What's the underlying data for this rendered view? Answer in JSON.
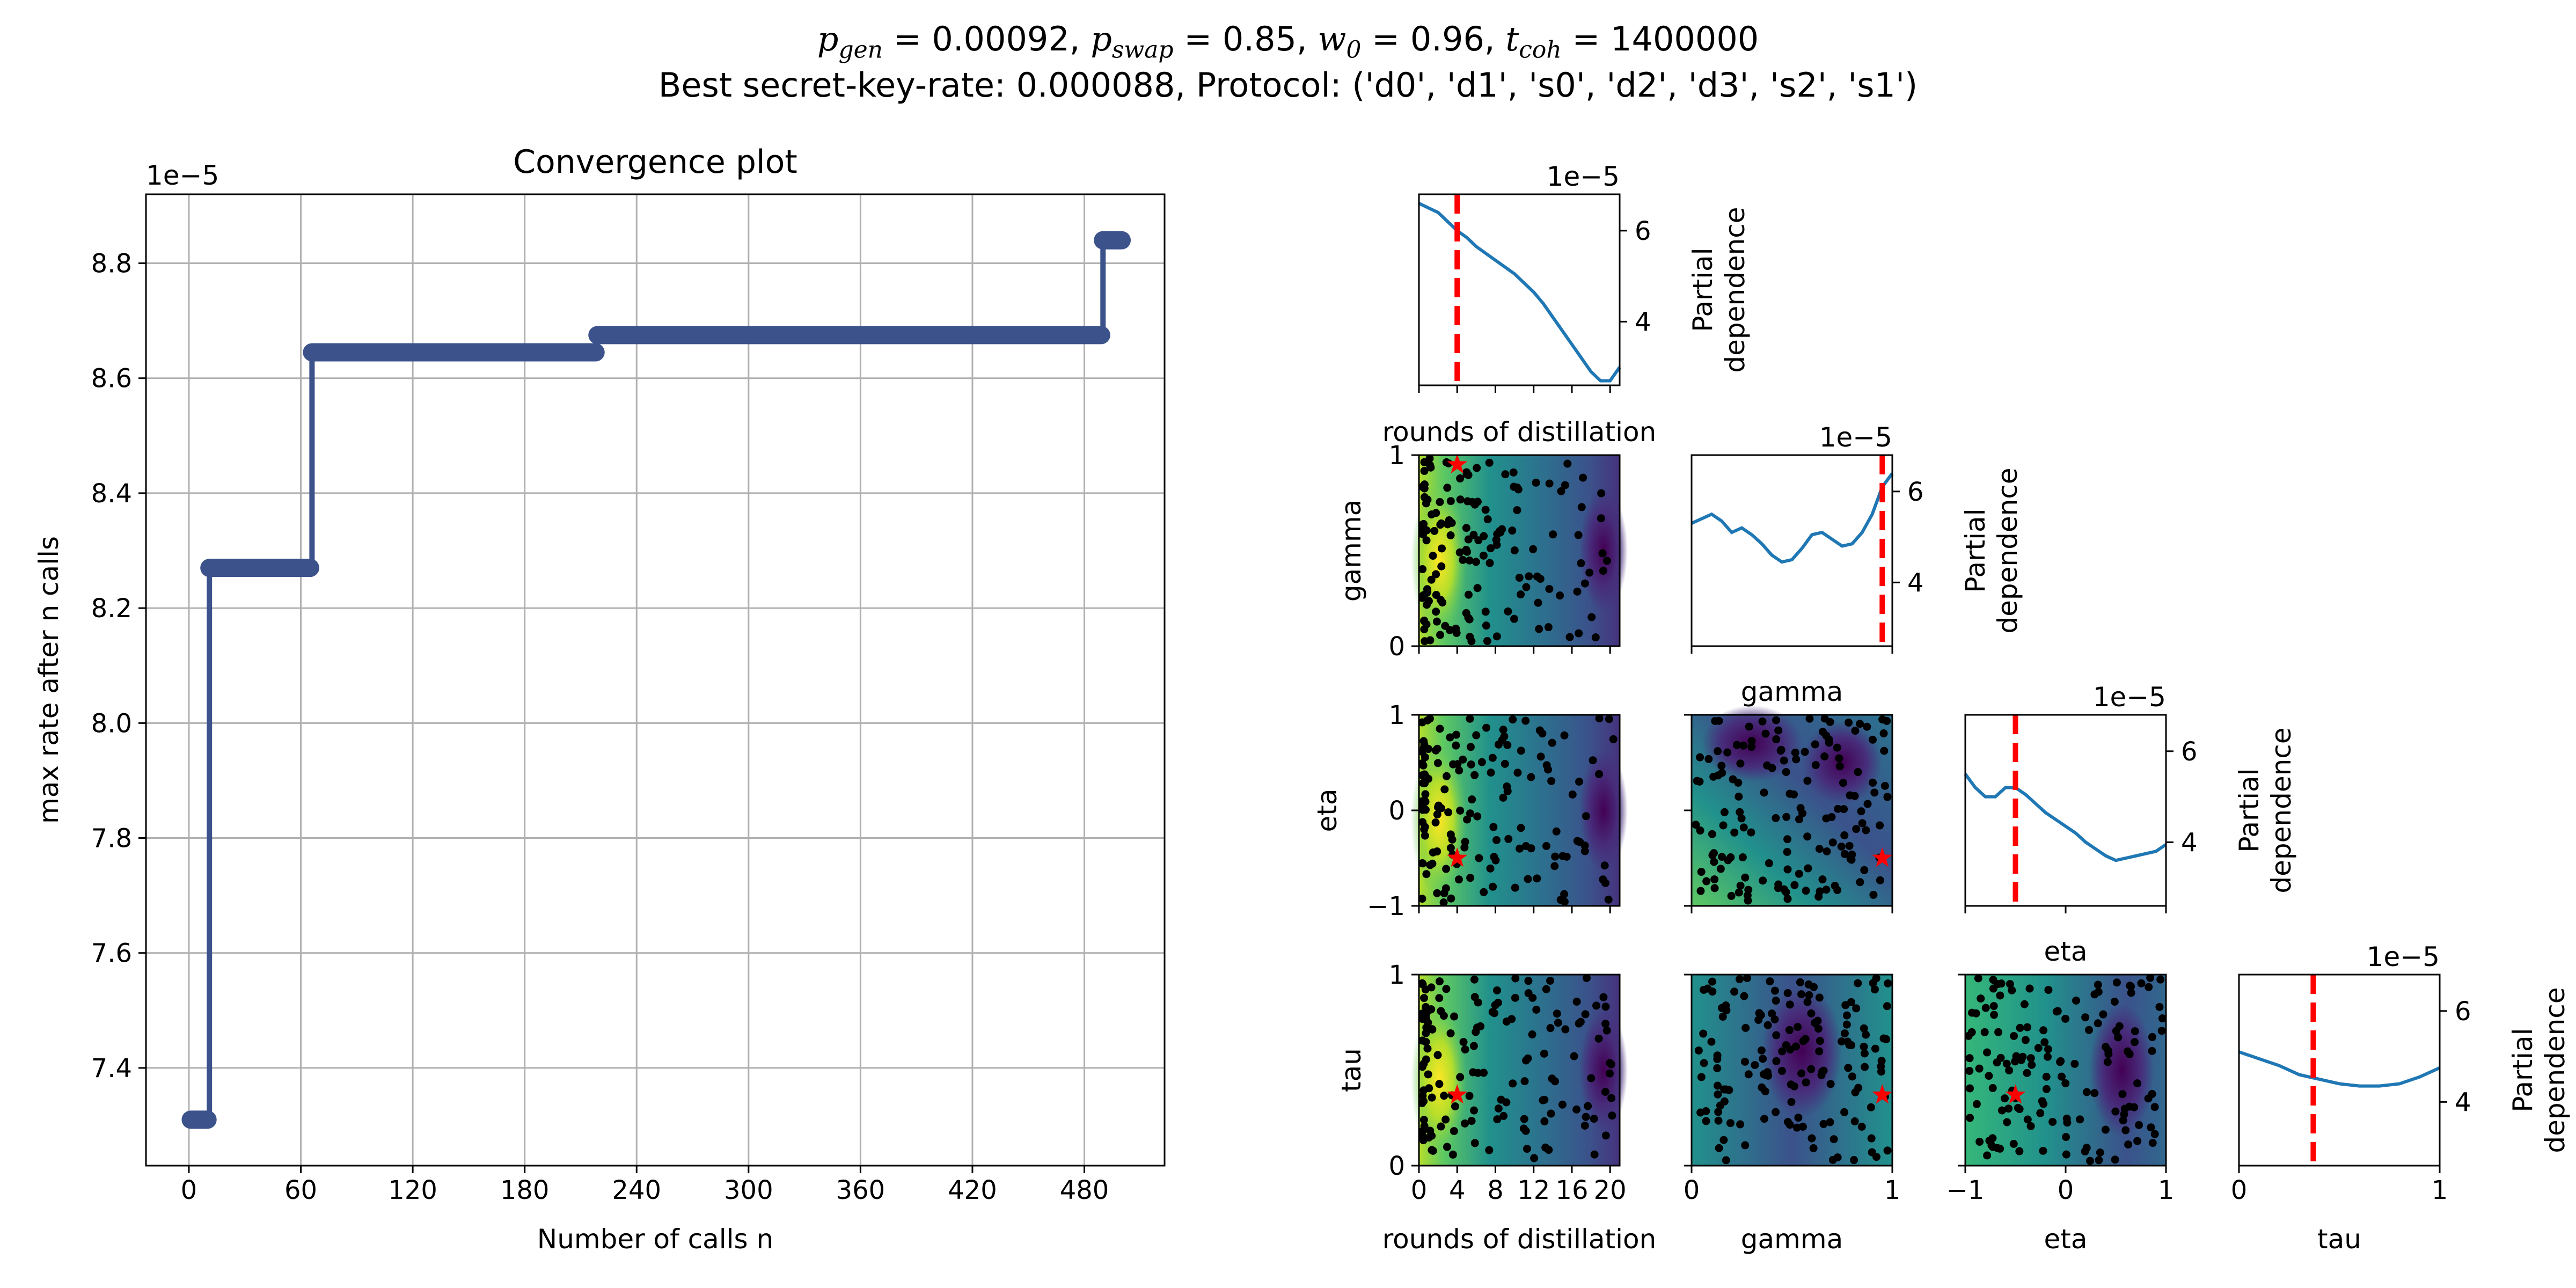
{
  "suptitle": {
    "p_gen": "0.00092",
    "p_swap": "0.85",
    "w_0": "0.96",
    "t_coh": "1400000",
    "line2": "Best secret-key-rate: 0.000088, Protocol: ('d0', 'd1', 's0', 'd2', 'd3', 's2', 's1')"
  },
  "colors": {
    "convergence_line": "#3b528b",
    "partial_line": "#1f77b4",
    "best_marker": "#ff0000",
    "grid": "#b0b0b0",
    "samples": "#000000"
  },
  "chart_data": [
    {
      "type": "line",
      "title": "Convergence plot",
      "xlabel": "Number of calls n",
      "ylabel": "max rate after n calls",
      "y_offset_label": "1e−5",
      "xlim": [
        -23,
        523
      ],
      "ylim": [
        7.23,
        8.92
      ],
      "xticks": [
        0,
        60,
        120,
        180,
        240,
        300,
        360,
        420,
        480
      ],
      "yticks": [
        7.4,
        7.6,
        7.8,
        8.0,
        8.2,
        8.4,
        8.6,
        8.8
      ],
      "ytick_labels": [
        "7.4",
        "7.6",
        "7.8",
        "8.0",
        "8.2",
        "8.4",
        "8.6",
        "8.8"
      ],
      "grid": true,
      "series": [
        {
          "steps": [
            [
              1,
              7.31
            ],
            [
              11,
              8.27
            ],
            [
              66,
              8.645
            ],
            [
              219,
              8.675
            ],
            [
              490,
              8.84
            ],
            [
              500,
              8.84
            ]
          ]
        }
      ]
    },
    {
      "type": "line",
      "panel": "partial dependence: rounds of distillation",
      "xlabel": "rounds of distillation",
      "ylabel": "Partial dependence",
      "y_offset_label": "1e−5",
      "xlim": [
        0,
        21
      ],
      "ylim": [
        2.6,
        6.8
      ],
      "yticks": [
        4,
        6
      ],
      "minimum_marker": 4,
      "x": [
        0,
        1,
        2,
        3,
        4,
        5,
        6,
        7,
        8,
        9,
        10,
        11,
        12,
        13,
        14,
        15,
        16,
        17,
        18,
        19,
        20,
        21
      ],
      "y": [
        6.6,
        6.5,
        6.4,
        6.2,
        6.0,
        5.85,
        5.65,
        5.5,
        5.35,
        5.2,
        5.05,
        4.85,
        4.65,
        4.4,
        4.1,
        3.8,
        3.5,
        3.2,
        2.9,
        2.7,
        2.7,
        3.0
      ]
    },
    {
      "type": "line",
      "panel": "partial dependence: gamma",
      "xlabel": "gamma",
      "ylabel": "Partial dependence",
      "y_offset_label": "1e−5",
      "xlim": [
        0,
        1
      ],
      "ylim": [
        2.6,
        6.8
      ],
      "yticks": [
        4,
        6
      ],
      "minimum_marker": 0.95,
      "x": [
        0,
        0.05,
        0.1,
        0.15,
        0.2,
        0.25,
        0.3,
        0.35,
        0.4,
        0.45,
        0.5,
        0.55,
        0.6,
        0.65,
        0.7,
        0.75,
        0.8,
        0.85,
        0.9,
        0.95,
        1.0
      ],
      "y": [
        5.3,
        5.4,
        5.5,
        5.35,
        5.1,
        5.2,
        5.05,
        4.85,
        4.6,
        4.45,
        4.5,
        4.75,
        5.05,
        5.1,
        4.95,
        4.8,
        4.85,
        5.1,
        5.5,
        6.1,
        6.4
      ]
    },
    {
      "type": "line",
      "panel": "partial dependence: eta",
      "xlabel": "eta",
      "ylabel": "Partial dependence",
      "y_offset_label": "1e−5",
      "xlim": [
        -1,
        1
      ],
      "ylim": [
        2.6,
        6.8
      ],
      "yticks": [
        4,
        6
      ],
      "minimum_marker": -0.5,
      "x": [
        -1,
        -0.9,
        -0.8,
        -0.7,
        -0.6,
        -0.5,
        -0.4,
        -0.3,
        -0.2,
        -0.1,
        0,
        0.1,
        0.2,
        0.3,
        0.4,
        0.5,
        0.6,
        0.7,
        0.8,
        0.9,
        1.0
      ],
      "y": [
        5.5,
        5.2,
        5.0,
        5.0,
        5.2,
        5.2,
        5.05,
        4.85,
        4.65,
        4.5,
        4.35,
        4.2,
        4.0,
        3.85,
        3.7,
        3.6,
        3.65,
        3.7,
        3.75,
        3.8,
        3.95
      ]
    },
    {
      "type": "line",
      "panel": "partial dependence: tau",
      "xlabel": "tau",
      "ylabel": "Partial dependence",
      "y_offset_label": "1e−5",
      "xlim": [
        0,
        1
      ],
      "ylim": [
        2.6,
        6.8
      ],
      "yticks": [
        4,
        6
      ],
      "minimum_marker": 0.37,
      "x": [
        0,
        0.1,
        0.2,
        0.3,
        0.4,
        0.5,
        0.6,
        0.7,
        0.8,
        0.9,
        1.0
      ],
      "y": [
        5.1,
        4.95,
        4.8,
        4.6,
        4.5,
        4.4,
        4.35,
        4.35,
        4.4,
        4.55,
        4.75
      ]
    },
    {
      "type": "heatmap",
      "panel": "contour: gamma vs rounds of distillation",
      "xlabel": "rounds of distillation",
      "ylabel": "gamma",
      "xlim": [
        0,
        21
      ],
      "ylim": [
        0,
        1
      ],
      "best_point": [
        4,
        0.95
      ]
    },
    {
      "type": "heatmap",
      "panel": "contour: eta vs rounds of distillation",
      "xlabel": "rounds of distillation",
      "ylabel": "eta",
      "xlim": [
        0,
        21
      ],
      "ylim": [
        -1,
        1
      ],
      "best_point": [
        4,
        -0.5
      ]
    },
    {
      "type": "heatmap",
      "panel": "contour: eta vs gamma",
      "xlabel": "gamma",
      "ylabel": "eta",
      "xlim": [
        0,
        1
      ],
      "ylim": [
        -1,
        1
      ],
      "best_point": [
        0.95,
        -0.5
      ]
    },
    {
      "type": "heatmap",
      "panel": "contour: tau vs rounds of distillation",
      "xlabel": "rounds of distillation",
      "ylabel": "tau",
      "xlim": [
        0,
        21
      ],
      "ylim": [
        0,
        1
      ],
      "best_point": [
        4,
        0.37
      ]
    },
    {
      "type": "heatmap",
      "panel": "contour: tau vs gamma",
      "xlabel": "gamma",
      "ylabel": "tau",
      "xlim": [
        0,
        1
      ],
      "ylim": [
        0,
        1
      ],
      "best_point": [
        0.95,
        0.37
      ]
    },
    {
      "type": "heatmap",
      "panel": "contour: tau vs eta",
      "xlabel": "eta",
      "ylabel": "tau",
      "xlim": [
        -1,
        1
      ],
      "ylim": [
        0,
        1
      ],
      "best_point": [
        -0.5,
        0.37
      ]
    }
  ],
  "tick_labels": {
    "rounds_x": [
      "0",
      "4",
      "8",
      "12",
      "16",
      "20"
    ],
    "rounds_x_values": [
      0,
      4,
      8,
      12,
      16,
      20
    ],
    "gamma_x": [
      "0",
      "1"
    ],
    "eta_x": [
      "−1",
      "0",
      "1"
    ],
    "tau_x": [
      "0",
      "1"
    ],
    "gamma_y": [
      "0",
      "1"
    ],
    "eta_y": [
      "−1",
      "0",
      "1"
    ],
    "tau_y": [
      "0",
      "1"
    ],
    "pd_y": [
      "4",
      "6"
    ]
  },
  "labels": {
    "rounds": "rounds of distillation",
    "gamma": "gamma",
    "eta": "eta",
    "tau": "tau",
    "pd_line1": "Partial",
    "pd_line2": "dependence",
    "offset": "1e−5"
  }
}
